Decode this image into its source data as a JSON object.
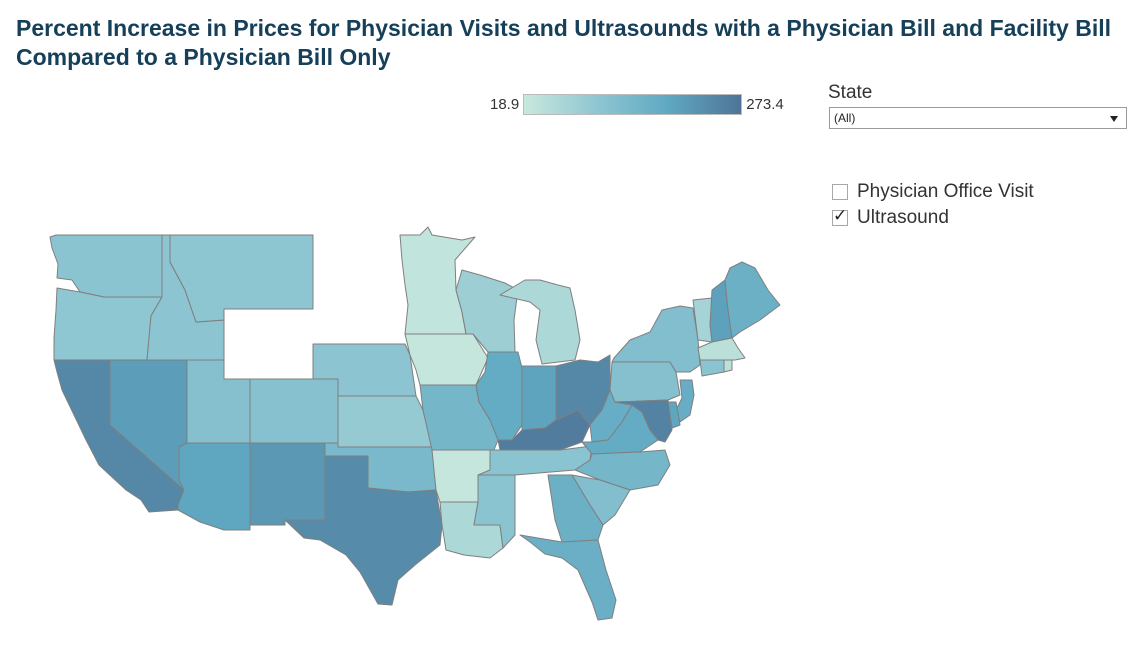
{
  "title": "Percent Increase in Prices for Physician Visits and Ultrasounds with a Physician Bill and Facility Bill Compared to a Physician Bill Only",
  "legend": {
    "min": "18.9",
    "max": "273.4",
    "min_value": 18.9,
    "max_value": 273.4,
    "colors": [
      "#c9e8dd",
      "#8fc6d2",
      "#5fa8c2",
      "#4f7496"
    ]
  },
  "filter": {
    "label": "State",
    "selected": "(All)"
  },
  "checkboxes": [
    {
      "label": "Physician Office Visit",
      "checked": false
    },
    {
      "label": "Ultrasound",
      "checked": true
    }
  ],
  "states": {
    "WA": 110,
    "OR": 105,
    "CA": 240,
    "NV": 205,
    "ID": 108,
    "MT": 107,
    "UT": 120,
    "AZ": 190,
    "CO": 118,
    "NM": 215,
    "WY": null,
    "ND": null,
    "SD": null,
    "NE": 108,
    "KS": 95,
    "OK": 140,
    "TX": 235,
    "MN": 30,
    "IA": 25,
    "MO": 150,
    "AR": 25,
    "LA": 60,
    "WI": 85,
    "IL": 180,
    "MS": 110,
    "MI": 60,
    "IN": 195,
    "KY": 260,
    "TN": 110,
    "AL": null,
    "OH": 240,
    "WV": 175,
    "GA": 165,
    "FL": 170,
    "SC": 125,
    "NC": 150,
    "VA": 180,
    "PA": 120,
    "NY": 125,
    "VT": 70,
    "NH": 200,
    "ME": 165,
    "MA": 40,
    "CT": 110,
    "RI": 40,
    "NJ": 175,
    "DE": 190,
    "MD": 250
  }
}
